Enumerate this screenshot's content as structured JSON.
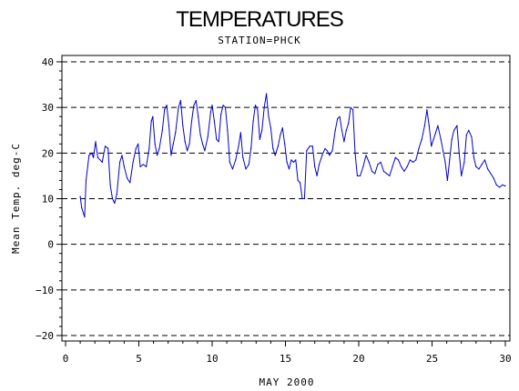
{
  "chart_data": {
    "type": "line",
    "title": "TEMPERATURES",
    "subtitle": "STATION=PHCK",
    "xlabel": "MAY 2000",
    "ylabel": "Mean Temp. deg-C",
    "xlim": [
      0,
      30
    ],
    "ylim": [
      -20,
      40
    ],
    "x_ticks": [
      0,
      5,
      10,
      15,
      20,
      25,
      30
    ],
    "y_ticks": [
      -20,
      -10,
      0,
      10,
      20,
      30,
      40
    ],
    "grid": "horizontal dashed at y ticks",
    "colors": {
      "series": "#0000cc",
      "axes": "#000000",
      "grid": "#000000"
    },
    "series": [
      {
        "values": [
          [
            1.0,
            10.5
          ],
          [
            1.1,
            8.0
          ],
          [
            1.3,
            6.0
          ],
          [
            1.4,
            14.0
          ],
          [
            1.6,
            19.5
          ],
          [
            1.8,
            20.0
          ],
          [
            1.9,
            19.0
          ],
          [
            2.05,
            22.5
          ],
          [
            2.2,
            19.0
          ],
          [
            2.5,
            18.0
          ],
          [
            2.7,
            21.5
          ],
          [
            2.9,
            21.0
          ],
          [
            3.05,
            13.0
          ],
          [
            3.2,
            10.0
          ],
          [
            3.35,
            9.0
          ],
          [
            3.5,
            11.0
          ],
          [
            3.7,
            18.0
          ],
          [
            3.85,
            19.5
          ],
          [
            4.0,
            17.0
          ],
          [
            4.2,
            14.5
          ],
          [
            4.4,
            13.5
          ],
          [
            4.6,
            18.0
          ],
          [
            4.8,
            21.0
          ],
          [
            4.95,
            22.0
          ],
          [
            5.1,
            17.0
          ],
          [
            5.3,
            17.5
          ],
          [
            5.5,
            17.0
          ],
          [
            5.7,
            21.0
          ],
          [
            5.85,
            27.0
          ],
          [
            5.95,
            28.0
          ],
          [
            6.1,
            22.0
          ],
          [
            6.25,
            19.5
          ],
          [
            6.4,
            21.0
          ],
          [
            6.6,
            25.0
          ],
          [
            6.75,
            29.5
          ],
          [
            6.9,
            30.5
          ],
          [
            7.05,
            26.0
          ],
          [
            7.2,
            19.5
          ],
          [
            7.35,
            22.0
          ],
          [
            7.5,
            24.5
          ],
          [
            7.7,
            30.0
          ],
          [
            7.85,
            31.5
          ],
          [
            8.0,
            26.0
          ],
          [
            8.15,
            22.5
          ],
          [
            8.3,
            20.5
          ],
          [
            8.45,
            22.0
          ],
          [
            8.6,
            27.0
          ],
          [
            8.75,
            30.5
          ],
          [
            8.9,
            31.5
          ],
          [
            9.05,
            28.0
          ],
          [
            9.2,
            24.0
          ],
          [
            9.35,
            22.0
          ],
          [
            9.5,
            20.5
          ],
          [
            9.7,
            23.5
          ],
          [
            9.9,
            29.0
          ],
          [
            10.0,
            30.5
          ],
          [
            10.15,
            27.0
          ],
          [
            10.3,
            23.0
          ],
          [
            10.45,
            22.5
          ],
          [
            10.6,
            28.5
          ],
          [
            10.75,
            30.5
          ],
          [
            10.9,
            30.0
          ],
          [
            11.05,
            25.0
          ],
          [
            11.2,
            18.0
          ],
          [
            11.4,
            16.5
          ],
          [
            11.6,
            18.5
          ],
          [
            11.8,
            21.5
          ],
          [
            11.95,
            24.5
          ],
          [
            12.1,
            19.0
          ],
          [
            12.3,
            16.5
          ],
          [
            12.5,
            17.5
          ],
          [
            12.65,
            21.0
          ],
          [
            12.8,
            27.0
          ],
          [
            12.95,
            30.5
          ],
          [
            13.1,
            29.5
          ],
          [
            13.25,
            23.0
          ],
          [
            13.4,
            25.0
          ],
          [
            13.55,
            30.0
          ],
          [
            13.7,
            33.0
          ],
          [
            13.85,
            28.0
          ],
          [
            14.0,
            25.5
          ],
          [
            14.15,
            21.0
          ],
          [
            14.3,
            19.5
          ],
          [
            14.5,
            21.5
          ],
          [
            14.65,
            24.0
          ],
          [
            14.8,
            25.5
          ],
          [
            14.95,
            22.0
          ],
          [
            15.1,
            18.0
          ],
          [
            15.25,
            16.5
          ],
          [
            15.4,
            18.5
          ],
          [
            15.55,
            18.0
          ],
          [
            15.7,
            18.5
          ],
          [
            15.85,
            14.0
          ],
          [
            16.0,
            13.5
          ],
          [
            16.15,
            10.0
          ],
          [
            16.3,
            10.0
          ],
          [
            16.45,
            20.5
          ],
          [
            16.65,
            21.5
          ],
          [
            16.85,
            21.5
          ],
          [
            17.0,
            17.0
          ],
          [
            17.15,
            15.0
          ],
          [
            17.3,
            17.5
          ],
          [
            17.5,
            19.5
          ],
          [
            17.7,
            21.0
          ],
          [
            17.85,
            20.5
          ],
          [
            18.0,
            19.5
          ],
          [
            18.2,
            20.5
          ],
          [
            18.4,
            25.0
          ],
          [
            18.55,
            27.5
          ],
          [
            18.7,
            28.0
          ],
          [
            18.85,
            25.0
          ],
          [
            19.0,
            22.5
          ],
          [
            19.15,
            25.0
          ],
          [
            19.3,
            26.5
          ],
          [
            19.45,
            30.0
          ],
          [
            19.6,
            29.5
          ],
          [
            19.75,
            20.0
          ],
          [
            19.9,
            15.0
          ],
          [
            20.1,
            15.0
          ],
          [
            20.3,
            17.0
          ],
          [
            20.5,
            19.5
          ],
          [
            20.7,
            18.0
          ],
          [
            20.9,
            16.0
          ],
          [
            21.1,
            15.5
          ],
          [
            21.3,
            17.5
          ],
          [
            21.5,
            18.0
          ],
          [
            21.7,
            16.0
          ],
          [
            21.9,
            15.5
          ],
          [
            22.1,
            15.0
          ],
          [
            22.3,
            17.0
          ],
          [
            22.5,
            19.0
          ],
          [
            22.7,
            18.5
          ],
          [
            22.9,
            17.0
          ],
          [
            23.1,
            16.0
          ],
          [
            23.3,
            17.0
          ],
          [
            23.5,
            18.5
          ],
          [
            23.7,
            18.0
          ],
          [
            23.9,
            18.5
          ],
          [
            24.1,
            21.0
          ],
          [
            24.3,
            23.0
          ],
          [
            24.5,
            26.0
          ],
          [
            24.65,
            29.5
          ],
          [
            24.8,
            26.0
          ],
          [
            24.95,
            21.5
          ],
          [
            25.1,
            23.0
          ],
          [
            25.25,
            24.5
          ],
          [
            25.4,
            26.0
          ],
          [
            25.6,
            23.0
          ],
          [
            25.75,
            20.5
          ],
          [
            25.9,
            18.0
          ],
          [
            26.05,
            14.0
          ],
          [
            26.2,
            18.5
          ],
          [
            26.35,
            23.0
          ],
          [
            26.5,
            25.0
          ],
          [
            26.7,
            26.0
          ],
          [
            26.85,
            20.0
          ],
          [
            27.0,
            15.0
          ],
          [
            27.2,
            18.0
          ],
          [
            27.35,
            24.0
          ],
          [
            27.5,
            25.0
          ],
          [
            27.7,
            23.5
          ],
          [
            27.85,
            19.0
          ],
          [
            28.0,
            17.0
          ],
          [
            28.2,
            16.5
          ],
          [
            28.4,
            17.5
          ],
          [
            28.6,
            18.5
          ],
          [
            28.8,
            16.5
          ],
          [
            29.0,
            15.5
          ],
          [
            29.2,
            14.5
          ],
          [
            29.4,
            13.0
          ],
          [
            29.6,
            12.5
          ],
          [
            29.8,
            13.0
          ],
          [
            30.0,
            12.8
          ]
        ]
      }
    ]
  }
}
